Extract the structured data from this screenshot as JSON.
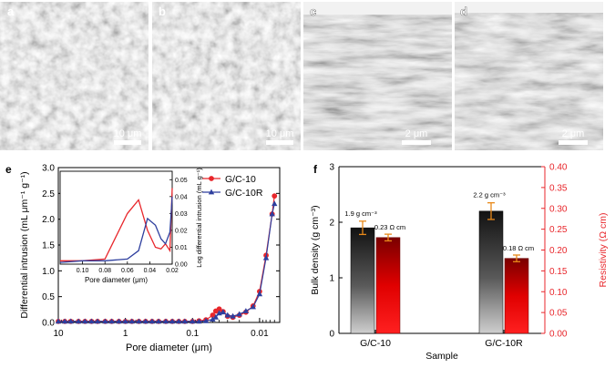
{
  "panels": {
    "a": {
      "letter": "a",
      "scale": "10 μm"
    },
    "b": {
      "letter": "b",
      "scale": "10 μm"
    },
    "c": {
      "letter": "c",
      "scale": "2 μm"
    },
    "d": {
      "letter": "d",
      "scale": "2 μm"
    }
  },
  "panel_e_letter": "e",
  "panel_f_letter": "f",
  "chart_data": [
    {
      "type": "line",
      "panel": "e",
      "xlabel": "Pore diameter (μm)",
      "ylabel": "Differential intrusion (mL μm⁻¹ g⁻¹)",
      "xscale": "log-reversed",
      "xlim": [
        10,
        0.005
      ],
      "ylim": [
        0,
        3.0
      ],
      "xticks": [
        "10",
        "1",
        "0.1",
        "0.01"
      ],
      "yticks": [
        "0.0",
        "0.5",
        "1.0",
        "1.5",
        "2.0",
        "2.5",
        "3.0"
      ],
      "legend_position": "top-right",
      "series": [
        {
          "name": "G/C-10",
          "color": "#e8262b",
          "marker": "circle",
          "x": [
            10,
            8,
            6.5,
            5,
            4,
            3.2,
            2.6,
            2,
            1.6,
            1.25,
            1,
            0.8,
            0.63,
            0.5,
            0.4,
            0.32,
            0.25,
            0.2,
            0.16,
            0.13,
            0.1,
            0.08,
            0.063,
            0.05,
            0.045,
            0.04,
            0.035,
            0.03,
            0.025,
            0.02,
            0.016,
            0.0125,
            0.01,
            0.008,
            0.0065,
            0.006
          ],
          "y": [
            0.02,
            0.02,
            0.02,
            0.02,
            0.02,
            0.02,
            0.02,
            0.02,
            0.02,
            0.02,
            0.02,
            0.02,
            0.02,
            0.02,
            0.02,
            0.02,
            0.02,
            0.02,
            0.02,
            0.02,
            0.02,
            0.03,
            0.05,
            0.14,
            0.22,
            0.26,
            0.21,
            0.12,
            0.1,
            0.14,
            0.2,
            0.32,
            0.6,
            1.3,
            2.1,
            2.45
          ]
        },
        {
          "name": "G/C-10R",
          "color": "#2e3f9e",
          "marker": "triangle",
          "x": [
            10,
            8,
            6.5,
            5,
            4,
            3.2,
            2.6,
            2,
            1.6,
            1.25,
            1,
            0.8,
            0.63,
            0.5,
            0.4,
            0.32,
            0.25,
            0.2,
            0.16,
            0.13,
            0.1,
            0.08,
            0.063,
            0.05,
            0.045,
            0.04,
            0.035,
            0.03,
            0.025,
            0.02,
            0.016,
            0.0125,
            0.01,
            0.008,
            0.0065,
            0.006
          ],
          "y": [
            0.02,
            0.02,
            0.02,
            0.02,
            0.02,
            0.02,
            0.02,
            0.02,
            0.02,
            0.02,
            0.02,
            0.02,
            0.02,
            0.02,
            0.02,
            0.02,
            0.02,
            0.02,
            0.02,
            0.02,
            0.02,
            0.02,
            0.03,
            0.06,
            0.1,
            0.18,
            0.2,
            0.14,
            0.12,
            0.16,
            0.22,
            0.3,
            0.55,
            1.25,
            2.1,
            2.3
          ]
        }
      ],
      "inset": {
        "xlabel": "Pore diameter (μm)",
        "ylabel": "Log differential intrusion (mL g⁻¹)",
        "xscale": "reversed",
        "xlim": [
          0.12,
          0.02
        ],
        "ylim": [
          0,
          0.055
        ],
        "xticks": [
          "0.10",
          "0.08",
          "0.06",
          "0.04",
          "0.02"
        ],
        "yticks": [
          "0.00",
          "0.01",
          "0.02",
          "0.03",
          "0.04",
          "0.05"
        ],
        "series": [
          {
            "name": "G/C-10",
            "color": "#e8262b",
            "x": [
              0.12,
              0.1,
              0.08,
              0.06,
              0.05,
              0.042,
              0.035,
              0.03,
              0.026,
              0.022,
              0.02
            ],
            "y": [
              0.002,
              0.002,
              0.003,
              0.03,
              0.038,
              0.02,
              0.01,
              0.009,
              0.012,
              0.008,
              0.045
            ]
          },
          {
            "name": "G/C-10R",
            "color": "#2e3f9e",
            "x": [
              0.12,
              0.1,
              0.08,
              0.06,
              0.05,
              0.042,
              0.035,
              0.03,
              0.026,
              0.022,
              0.02
            ],
            "y": [
              0.001,
              0.002,
              0.002,
              0.003,
              0.008,
              0.027,
              0.023,
              0.015,
              0.012,
              0.019,
              0.04
            ]
          }
        ]
      }
    },
    {
      "type": "bar",
      "panel": "f",
      "xlabel": "Sample",
      "ylabel": "Bulk density (g cm⁻³)",
      "ylabel_right": "Resistivity (Ω cm)",
      "categories": [
        "G/C-10",
        "G/C-10R"
      ],
      "ylim": [
        0,
        3
      ],
      "ylim_right": [
        0,
        0.4
      ],
      "yticks": [
        "0",
        "1",
        "2",
        "3"
      ],
      "yticks_right": [
        "0.00",
        "0.05",
        "0.10",
        "0.15",
        "0.20",
        "0.25",
        "0.30",
        "0.35",
        "0.40"
      ],
      "right_axis_color": "#e8262b",
      "series": [
        {
          "name": "Bulk density",
          "axis": "left",
          "color": "#1a1a1a",
          "values": [
            1.9,
            2.2
          ],
          "errors": [
            0.12,
            0.15
          ],
          "labels": [
            "1.9 g cm⁻³",
            "2.2 g cm⁻³"
          ]
        },
        {
          "name": "Resistivity",
          "axis": "right",
          "color": "#e01010",
          "values": [
            0.23,
            0.18
          ],
          "errors": [
            0.008,
            0.008
          ],
          "labels": [
            "0.23 Ω cm",
            "0.18 Ω cm"
          ]
        }
      ]
    }
  ]
}
